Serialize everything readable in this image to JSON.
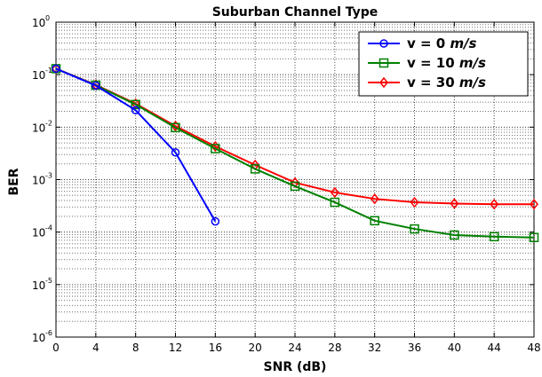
{
  "chart_data": {
    "type": "line",
    "title": "Suburban Channel Type",
    "xlabel": "SNR (dB)",
    "ylabel": "BER",
    "x_ticks": [
      0,
      4,
      8,
      12,
      16,
      20,
      24,
      28,
      32,
      36,
      40,
      44,
      48
    ],
    "xlim": [
      0,
      48
    ],
    "ylim": [
      1e-06,
      1
    ],
    "y_scale": "log",
    "y_ticks": [
      {
        "base": "10",
        "exp": "0",
        "value": 1
      },
      {
        "base": "10",
        "exp": "-1",
        "value": 0.1
      },
      {
        "base": "10",
        "exp": "-2",
        "value": 0.01
      },
      {
        "base": "10",
        "exp": "-3",
        "value": 0.001
      },
      {
        "base": "10",
        "exp": "-4",
        "value": 0.0001
      },
      {
        "base": "10",
        "exp": "-5",
        "value": 1e-05
      },
      {
        "base": "10",
        "exp": "-6",
        "value": 1e-06
      }
    ],
    "grid": true,
    "legend_position": "top-right",
    "series": [
      {
        "name": "v =   0 m/s",
        "legend_prefix": "v =   0 ",
        "legend_unit": "m/s",
        "color": "#0000ff",
        "marker": "circle",
        "x": [
          0,
          4,
          8,
          12,
          16
        ],
        "y": [
          0.13,
          0.062,
          0.021,
          0.0033,
          0.00016
        ]
      },
      {
        "name": "v = 10 m/s",
        "legend_prefix": "v = 10 ",
        "legend_unit": "m/s",
        "color": "#008000",
        "marker": "square",
        "x": [
          0,
          4,
          8,
          12,
          16,
          20,
          24,
          28,
          32,
          36,
          40,
          44,
          48
        ],
        "y": [
          0.13,
          0.063,
          0.027,
          0.0098,
          0.0039,
          0.0016,
          0.00075,
          0.00037,
          0.000165,
          0.000115,
          8.8e-05,
          8.2e-05,
          7.9e-05
        ]
      },
      {
        "name": "v = 30 m/s",
        "legend_prefix": "v = 30 ",
        "legend_unit": "m/s",
        "color": "#ff0000",
        "marker": "diamond",
        "x": [
          0,
          4,
          8,
          12,
          16,
          20,
          24,
          28,
          32,
          36,
          40,
          44,
          48
        ],
        "y": [
          0.13,
          0.064,
          0.028,
          0.0105,
          0.0043,
          0.0019,
          0.00088,
          0.00057,
          0.00043,
          0.00037,
          0.00035,
          0.00034,
          0.00034
        ]
      }
    ]
  }
}
